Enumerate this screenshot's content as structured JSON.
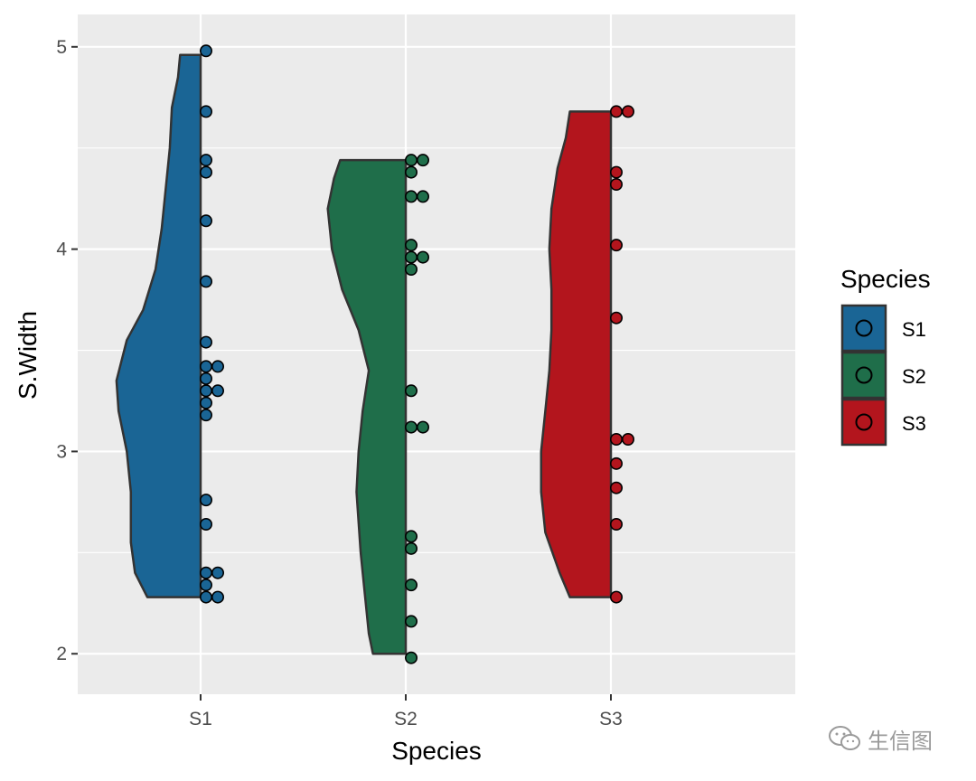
{
  "chart_data": {
    "type": "half-violin-dot",
    "xlabel": "Species",
    "ylabel": "S.Width",
    "categories": [
      "S1",
      "S2",
      "S3"
    ],
    "ylim": [
      1.8,
      5.16
    ],
    "yticks": [
      2,
      3,
      4,
      5
    ],
    "grid": true,
    "background": "#ebebeb",
    "legend": {
      "title": "Species",
      "position": "right",
      "entries": [
        "S1",
        "S2",
        "S3"
      ]
    },
    "colors": {
      "S1": "#1a6595",
      "S2": "#1f6e4a",
      "S3": "#b3151d"
    },
    "outline_color": "#333333",
    "series": [
      {
        "name": "S1",
        "range": [
          2.28,
          4.96
        ],
        "points": [
          4.98,
          4.68,
          4.44,
          4.38,
          4.14,
          3.84,
          3.54,
          3.42,
          3.42,
          3.36,
          3.3,
          3.3,
          3.24,
          3.18,
          2.76,
          2.64,
          2.4,
          2.4,
          2.34,
          2.28,
          2.28
        ],
        "density": [
          [
            2.28,
            0.26
          ],
          [
            2.4,
            0.32
          ],
          [
            2.55,
            0.34
          ],
          [
            2.8,
            0.34
          ],
          [
            3.0,
            0.36
          ],
          [
            3.2,
            0.4
          ],
          [
            3.35,
            0.41
          ],
          [
            3.55,
            0.36
          ],
          [
            3.7,
            0.28
          ],
          [
            3.9,
            0.22
          ],
          [
            4.1,
            0.19
          ],
          [
            4.3,
            0.17
          ],
          [
            4.5,
            0.15
          ],
          [
            4.7,
            0.14
          ],
          [
            4.85,
            0.11
          ],
          [
            4.96,
            0.1
          ]
        ]
      },
      {
        "name": "S2",
        "range": [
          2.0,
          4.44
        ],
        "points": [
          4.44,
          4.44,
          4.38,
          4.26,
          4.26,
          4.02,
          3.96,
          3.96,
          3.9,
          3.3,
          3.12,
          3.12,
          2.58,
          2.52,
          2.34,
          2.16,
          1.98
        ],
        "density": [
          [
            2.0,
            0.16
          ],
          [
            2.1,
            0.18
          ],
          [
            2.3,
            0.2
          ],
          [
            2.5,
            0.22
          ],
          [
            2.8,
            0.24
          ],
          [
            3.0,
            0.23
          ],
          [
            3.2,
            0.21
          ],
          [
            3.4,
            0.18
          ],
          [
            3.6,
            0.23
          ],
          [
            3.8,
            0.31
          ],
          [
            4.0,
            0.36
          ],
          [
            4.2,
            0.38
          ],
          [
            4.35,
            0.35
          ],
          [
            4.44,
            0.32
          ]
        ]
      },
      {
        "name": "S3",
        "range": [
          2.28,
          4.68
        ],
        "points": [
          4.68,
          4.68,
          4.38,
          4.32,
          4.02,
          3.66,
          3.06,
          3.06,
          2.94,
          2.82,
          2.64,
          2.28
        ],
        "density": [
          [
            2.28,
            0.2
          ],
          [
            2.4,
            0.25
          ],
          [
            2.6,
            0.32
          ],
          [
            2.8,
            0.34
          ],
          [
            3.0,
            0.34
          ],
          [
            3.2,
            0.32
          ],
          [
            3.4,
            0.3
          ],
          [
            3.6,
            0.29
          ],
          [
            3.8,
            0.29
          ],
          [
            4.0,
            0.3
          ],
          [
            4.2,
            0.29
          ],
          [
            4.4,
            0.26
          ],
          [
            4.55,
            0.22
          ],
          [
            4.68,
            0.2
          ]
        ]
      }
    ]
  },
  "watermark": {
    "text": "生信图",
    "icon": "wechat-icon"
  }
}
